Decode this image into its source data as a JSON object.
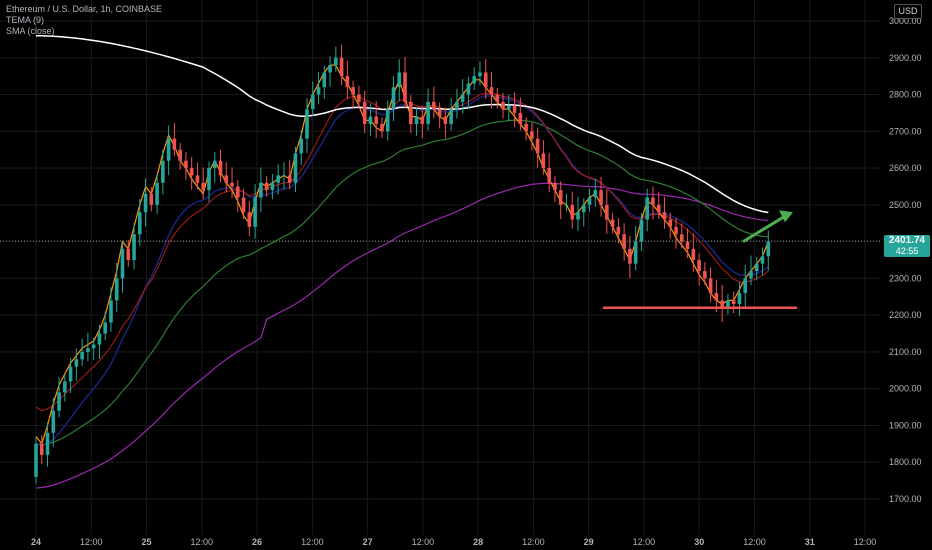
{
  "legend": {
    "symbol": "Ethereum / U.S. Dollar, 1h, COINBASE",
    "indicator_1": "TEMA (9)",
    "indicator_2": "SMA (close)"
  },
  "currency_label": "USD",
  "last_price": {
    "price": "2401.74",
    "countdown": "42:55",
    "color": "#26a69a"
  },
  "colors": {
    "up": "#26a69a",
    "down": "#ef5350",
    "grid": "#1a1a1a",
    "axis_text": "#b2b5be",
    "support_line": "#ef5350",
    "arrow": "#4caf50"
  },
  "chart_data": {
    "type": "candlestick",
    "ylim": [
      1650,
      3050
    ],
    "y_ticks": [
      "3000.00",
      "2900.00",
      "2800.00",
      "2700.00",
      "2600.00",
      "2500.00",
      "2400.00",
      "2300.00",
      "2200.00",
      "2100.00",
      "2000.00",
      "1900.00",
      "1800.00",
      "1700.00"
    ],
    "y_tick_values": [
      3000,
      2900,
      2800,
      2700,
      2600,
      2500,
      2400,
      2300,
      2200,
      2100,
      2000,
      1900,
      1800,
      1700
    ],
    "x_ticks": [
      "24",
      "12:00",
      "25",
      "12:00",
      "26",
      "12:00",
      "27",
      "12:00",
      "28",
      "12:00",
      "29",
      "12:00",
      "30",
      "12:00",
      "31",
      "12:00"
    ],
    "x_tick_hours": [
      0,
      12,
      24,
      36,
      48,
      60,
      72,
      84,
      96,
      108,
      120,
      132,
      144,
      156,
      168,
      180
    ],
    "candles_close": [
      1850,
      1820,
      1880,
      1940,
      1990,
      2020,
      2060,
      2080,
      2100,
      2110,
      2120,
      2150,
      2180,
      2240,
      2300,
      2380,
      2350,
      2420,
      2480,
      2530,
      2500,
      2560,
      2620,
      2680,
      2650,
      2620,
      2600,
      2580,
      2560,
      2540,
      2600,
      2620,
      2580,
      2560,
      2550,
      2520,
      2480,
      2440,
      2520,
      2560,
      2540,
      2560,
      2580,
      2580,
      2560,
      2640,
      2680,
      2760,
      2800,
      2820,
      2860,
      2880,
      2900,
      2850,
      2820,
      2800,
      2780,
      2720,
      2740,
      2720,
      2700,
      2760,
      2820,
      2860,
      2780,
      2720,
      2740,
      2720,
      2780,
      2760,
      2740,
      2720,
      2760,
      2780,
      2800,
      2830,
      2850,
      2860,
      2820,
      2800,
      2780,
      2760,
      2770,
      2750,
      2720,
      2700,
      2680,
      2640,
      2600,
      2560,
      2540,
      2500,
      2500,
      2460,
      2480,
      2500,
      2520,
      2540,
      2500,
      2460,
      2440,
      2420,
      2380,
      2340,
      2400,
      2460,
      2520,
      2500,
      2480,
      2460,
      2440,
      2420,
      2400,
      2380,
      2350,
      2320,
      2300,
      2260,
      2240,
      2220,
      2240,
      2230,
      2260,
      2300,
      2320,
      2340,
      2360,
      2400
    ],
    "tema": [
      1870,
      1850,
      1900,
      1960,
      2010,
      2040,
      2070,
      2090,
      2110,
      2120,
      2130,
      2160,
      2200,
      2260,
      2320,
      2400,
      2380,
      2440,
      2500,
      2550,
      2530,
      2580,
      2640,
      2690,
      2660,
      2620,
      2600,
      2570,
      2550,
      2530,
      2590,
      2620,
      2590,
      2560,
      2540,
      2510,
      2470,
      2450,
      2510,
      2560,
      2550,
      2560,
      2570,
      2580,
      2570,
      2640,
      2690,
      2760,
      2800,
      2830,
      2860,
      2880,
      2880,
      2850,
      2830,
      2800,
      2770,
      2730,
      2730,
      2710,
      2700,
      2750,
      2800,
      2840,
      2790,
      2740,
      2740,
      2730,
      2770,
      2760,
      2740,
      2730,
      2760,
      2780,
      2800,
      2820,
      2840,
      2840,
      2820,
      2800,
      2780,
      2760,
      2760,
      2740,
      2720,
      2700,
      2670,
      2640,
      2600,
      2570,
      2540,
      2510,
      2500,
      2470,
      2480,
      2500,
      2520,
      2530,
      2500,
      2470,
      2440,
      2410,
      2380,
      2350,
      2400,
      2460,
      2510,
      2500,
      2480,
      2460,
      2440,
      2410,
      2390,
      2370,
      2340,
      2310,
      2290,
      2260,
      2240,
      2230,
      2240,
      2240,
      2270,
      2300,
      2320,
      2340,
      2360,
      2400
    ],
    "ema_red": [
      1950,
      1940,
      1945,
      1955,
      1970,
      1985,
      2000,
      2015,
      2030,
      2045,
      2060,
      2075,
      2095,
      2115,
      2140,
      2170,
      2190,
      2215,
      2245,
      2275,
      2295,
      2325,
      2360,
      2395,
      2420,
      2440,
      2455,
      2470,
      2480,
      2490,
      2505,
      2520,
      2530,
      2535,
      2540,
      2540,
      2535,
      2525,
      2530,
      2540,
      2545,
      2550,
      2555,
      2560,
      2560,
      2575,
      2595,
      2620,
      2650,
      2680,
      2710,
      2740,
      2765,
      2780,
      2790,
      2795,
      2795,
      2785,
      2780,
      2770,
      2760,
      2760,
      2770,
      2785,
      2785,
      2775,
      2770,
      2765,
      2770,
      2770,
      2765,
      2760,
      2762,
      2766,
      2772,
      2780,
      2790,
      2800,
      2802,
      2802,
      2800,
      2795,
      2792,
      2787,
      2780,
      2770,
      2758,
      2742,
      2722,
      2700,
      2676,
      2650,
      2630,
      2605,
      2590,
      2580,
      2574,
      2570,
      2560,
      2546,
      2530,
      2512,
      2492,
      2470,
      2462,
      2462,
      2470,
      2474,
      2474,
      2470,
      2464,
      2454,
      2444,
      2432,
      2418,
      2402,
      2385,
      2366,
      2346,
      2326,
      2312,
      2298,
      2290,
      2290,
      2294,
      2300,
      2308,
      2320
    ]
  },
  "overlays": {
    "support_level": 2220,
    "arrow_target": 2480
  }
}
